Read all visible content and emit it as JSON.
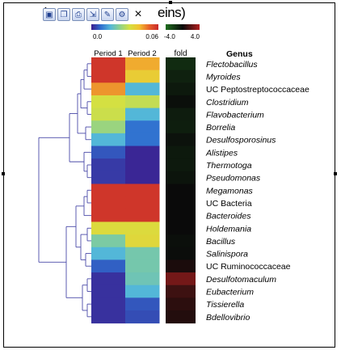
{
  "window": {
    "title_fragment": "eins)",
    "toolbar_buttons": [
      {
        "icon": "save-icon",
        "glyph": "▣"
      },
      {
        "icon": "copy-icon",
        "glyph": "❐"
      },
      {
        "icon": "print-icon",
        "glyph": "⎙"
      },
      {
        "icon": "export-icon",
        "glyph": "⇲"
      },
      {
        "icon": "edit-icon",
        "glyph": "✎"
      },
      {
        "icon": "settings-icon",
        "glyph": "⚙"
      }
    ],
    "close_glyph": "×"
  },
  "chart_data": {
    "type": "heatmap",
    "title": "",
    "columns": [
      "Period 1",
      "Period 2"
    ],
    "fold_column_label": "fold",
    "row_header": "Genus",
    "rows": [
      "Flectobacillus",
      "Myroides",
      "UC Peptostreptococcaceae",
      "Clostridium",
      "Flavobacterium",
      "Borrelia",
      "Desulfosporosinus",
      "Alistipes",
      "Thermotoga",
      "Pseudomonas",
      "Megamonas",
      "UC Bacteria",
      "Bacteroides",
      "Holdemania",
      "Bacillus",
      "Salinispora",
      "UC Ruminococcaceae",
      "Desulfotomaculum",
      "Eubacterium",
      "Tissierella",
      "Bdellovibrio"
    ],
    "italic_rows": [
      true,
      true,
      false,
      true,
      true,
      true,
      true,
      true,
      true,
      true,
      true,
      false,
      true,
      true,
      true,
      true,
      false,
      true,
      true,
      true,
      true
    ],
    "abundance_scale": {
      "min": 0.0,
      "max": 0.06,
      "tick_labels": [
        "0.0",
        "0.06"
      ],
      "colors": [
        "#3b1e8f",
        "#2f6fd0",
        "#54b8d8",
        "#8fd28a",
        "#d6e040",
        "#f2c230",
        "#e8642a",
        "#c8282a"
      ]
    },
    "fold_scale": {
      "min": -4.0,
      "max": 4.0,
      "tick_labels": [
        "-4.0",
        "4.0"
      ],
      "colors": [
        "#1f6e1f",
        "#0a0a0a",
        "#b32020"
      ]
    },
    "values": [
      [
        0.058,
        0.045
      ],
      [
        0.058,
        0.04
      ],
      [
        0.047,
        0.017
      ],
      [
        0.034,
        0.032
      ],
      [
        0.033,
        0.017
      ],
      [
        0.027,
        0.009
      ],
      [
        0.017,
        0.009
      ],
      [
        0.006,
        0.0008
      ],
      [
        0.003,
        0.0008
      ],
      [
        0.003,
        0.0008
      ],
      [
        0.058,
        0.058
      ],
      [
        0.058,
        0.058
      ],
      [
        0.058,
        0.058
      ],
      [
        0.036,
        0.036
      ],
      [
        0.023,
        0.037
      ],
      [
        0.017,
        0.022
      ],
      [
        0.007,
        0.022
      ],
      [
        0.002,
        0.021
      ],
      [
        0.002,
        0.017
      ],
      [
        0.002,
        0.006
      ],
      [
        0.002,
        0.005
      ]
    ],
    "fold": [
      -1.3,
      -0.9,
      -0.6,
      -0.2,
      -0.7,
      -0.8,
      -0.3,
      -0.6,
      -0.6,
      -0.4,
      0.0,
      0.0,
      0.0,
      0.0,
      -0.2,
      -0.1,
      0.4,
      2.5,
      1.2,
      0.8,
      0.6
    ]
  }
}
